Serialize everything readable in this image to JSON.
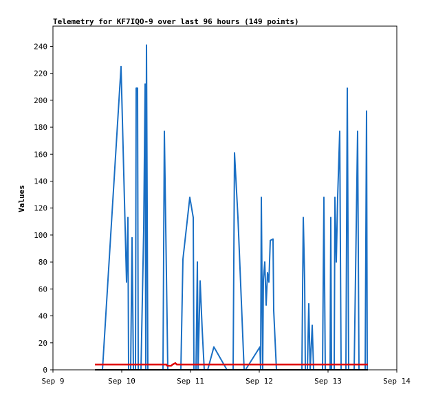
{
  "chart_data": {
    "type": "line",
    "title": "Telemetry for KF7IQO-9 over last 96 hours (149 points)",
    "ylabel": "Values",
    "xlabel": "",
    "ylim": [
      0,
      255
    ],
    "xlim_days": [
      9,
      14
    ],
    "yticks": [
      0,
      20,
      40,
      60,
      80,
      100,
      120,
      140,
      160,
      180,
      200,
      220,
      240
    ],
    "xticks": [
      {
        "day": 9,
        "label": "Sep 9"
      },
      {
        "day": 10,
        "label": "Sep 10"
      },
      {
        "day": 11,
        "label": "Sep 11"
      },
      {
        "day": 12,
        "label": "Sep 12"
      },
      {
        "day": 13,
        "label": "Sep 13"
      },
      {
        "day": 14,
        "label": "Sep 14"
      }
    ],
    "grid": false,
    "legend": "none",
    "series": [
      {
        "color": "#1a6fc4",
        "points": [
          [
            9.61,
            0
          ],
          [
            9.72,
            0
          ],
          [
            9.99,
            225
          ],
          [
            10.07,
            65
          ],
          [
            10.09,
            113
          ],
          [
            10.1,
            0
          ],
          [
            10.13,
            0
          ],
          [
            10.15,
            98
          ],
          [
            10.17,
            0
          ],
          [
            10.2,
            0
          ],
          [
            10.21,
            209
          ],
          [
            10.23,
            209
          ],
          [
            10.24,
            0
          ],
          [
            10.28,
            0
          ],
          [
            10.32,
            105
          ],
          [
            10.34,
            212
          ],
          [
            10.35,
            0
          ],
          [
            10.36,
            241
          ],
          [
            10.38,
            0
          ],
          [
            10.55,
            0
          ],
          [
            10.6,
            0
          ],
          [
            10.62,
            177
          ],
          [
            10.67,
            0
          ],
          [
            10.86,
            0
          ],
          [
            10.89,
            82
          ],
          [
            10.99,
            128
          ],
          [
            11.04,
            113
          ],
          [
            11.05,
            0
          ],
          [
            11.08,
            0
          ],
          [
            11.1,
            80
          ],
          [
            11.11,
            0
          ],
          [
            11.14,
            66
          ],
          [
            11.17,
            30
          ],
          [
            11.2,
            0
          ],
          [
            11.22,
            0
          ],
          [
            11.25,
            0
          ],
          [
            11.34,
            17
          ],
          [
            11.53,
            0
          ],
          [
            11.62,
            0
          ],
          [
            11.64,
            161
          ],
          [
            11.69,
            113
          ],
          [
            11.78,
            0
          ],
          [
            11.8,
            0
          ],
          [
            12.01,
            17
          ],
          [
            12.02,
            0
          ],
          [
            12.03,
            128
          ],
          [
            12.05,
            0
          ],
          [
            12.06,
            67
          ],
          [
            12.08,
            80
          ],
          [
            12.1,
            48
          ],
          [
            12.12,
            72
          ],
          [
            12.14,
            65
          ],
          [
            12.16,
            96
          ],
          [
            12.2,
            97
          ],
          [
            12.21,
            44
          ],
          [
            12.25,
            0
          ],
          [
            12.29,
            0
          ],
          [
            12.58,
            0
          ],
          [
            12.62,
            0
          ],
          [
            12.64,
            113
          ],
          [
            12.66,
            66
          ],
          [
            12.67,
            0
          ],
          [
            12.7,
            0
          ],
          [
            12.72,
            49
          ],
          [
            12.74,
            0
          ],
          [
            12.77,
            33
          ],
          [
            12.79,
            0
          ],
          [
            12.88,
            0
          ],
          [
            12.92,
            0
          ],
          [
            12.94,
            128
          ],
          [
            12.96,
            0
          ],
          [
            13.03,
            0
          ],
          [
            13.04,
            113
          ],
          [
            13.05,
            0
          ],
          [
            13.09,
            0
          ],
          [
            13.1,
            128
          ],
          [
            13.12,
            80
          ],
          [
            13.14,
            128
          ],
          [
            13.17,
            177
          ],
          [
            13.19,
            0
          ],
          [
            13.23,
            0
          ],
          [
            13.26,
            0
          ],
          [
            13.28,
            209
          ],
          [
            13.3,
            0
          ],
          [
            13.32,
            0
          ],
          [
            13.35,
            0
          ],
          [
            13.38,
            0
          ],
          [
            13.43,
            177
          ],
          [
            13.45,
            0
          ],
          [
            13.48,
            0
          ],
          [
            13.52,
            0
          ],
          [
            13.54,
            0
          ],
          [
            13.56,
            192
          ],
          [
            13.57,
            0
          ]
        ]
      },
      {
        "color": "#e00000",
        "points": [
          [
            9.61,
            4
          ],
          [
            10.65,
            4
          ],
          [
            10.66,
            3
          ],
          [
            10.72,
            3
          ],
          [
            10.74,
            4
          ],
          [
            10.78,
            5
          ],
          [
            10.8,
            4
          ],
          [
            12.2,
            4
          ],
          [
            13.58,
            4
          ]
        ]
      },
      {
        "color": "#000000",
        "points": [
          [
            9.61,
            0
          ],
          [
            13.58,
            0
          ]
        ]
      }
    ]
  }
}
